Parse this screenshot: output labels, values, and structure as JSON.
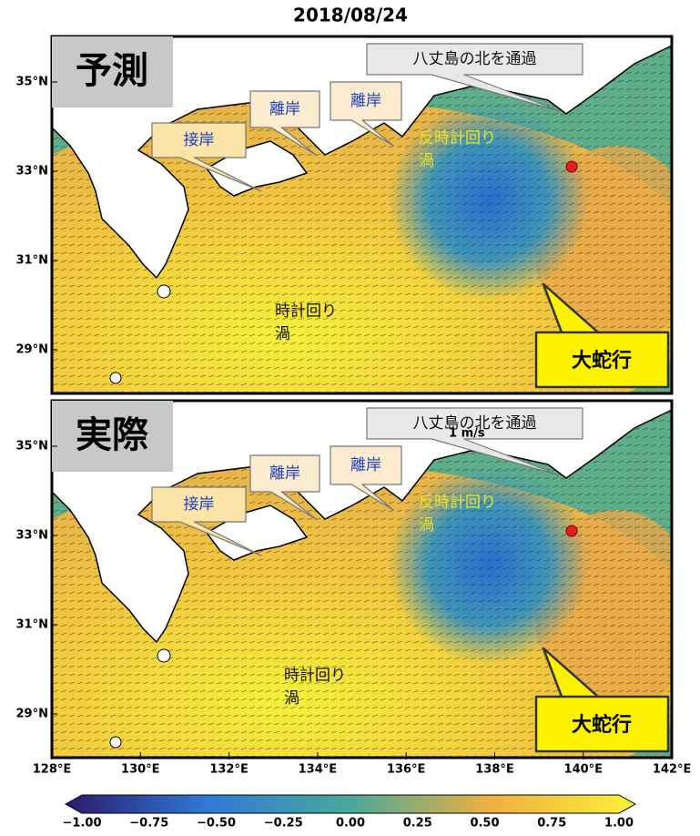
{
  "title": "2018/08/24",
  "panels": [
    {
      "label": "予測",
      "contact": "接岸",
      "offshore": [
        "離岸",
        "離岸"
      ],
      "hachijo": "八丈島の北を通過",
      "counterclockwise": [
        "反時計回り",
        "渦"
      ],
      "clockwise": [
        "時計回り",
        "渦"
      ],
      "meander": "大蛇行"
    },
    {
      "label": "実際",
      "contact": "接岸",
      "offshore": [
        "離岸",
        "離岸"
      ],
      "hachijo": "八丈島の北を通過",
      "counterclockwise": [
        "反時計回り",
        "渦"
      ],
      "clockwise": [
        "時計回り",
        "渦"
      ],
      "meander": "大蛇行",
      "scale": "1 m/s"
    }
  ],
  "lat_ticks": [
    "35°N",
    "33°N",
    "31°N",
    "29°N"
  ],
  "lon_ticks": [
    "128°E",
    "130°E",
    "132°E",
    "134°E",
    "136°E",
    "138°E",
    "140°E",
    "142°E"
  ],
  "colorbar_ticks": [
    "−1.00",
    "−0.75",
    "−0.50",
    "−0.25",
    "0.00",
    "0.25",
    "0.50",
    "0.75",
    "1.00"
  ]
}
